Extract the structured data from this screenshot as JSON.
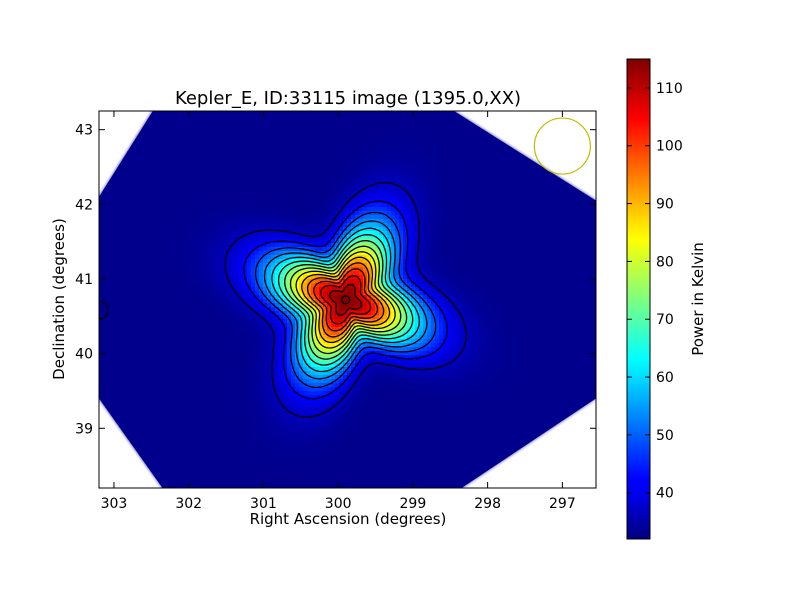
{
  "chart_data": {
    "type": "heatmap",
    "title": "Kepler_E, ID:33115 image (1395.0,XX)",
    "xlabel": "Right Ascension (degrees)",
    "ylabel": "Declination (degrees)",
    "xlim": [
      303.2,
      296.55
    ],
    "ylim": [
      38.2,
      43.25
    ],
    "x_ticks": [
      303,
      302,
      301,
      300,
      299,
      298,
      297
    ],
    "y_ticks": [
      39,
      40,
      41,
      42,
      43
    ],
    "grid": false,
    "colorbar": {
      "label": "Power in Kelvin",
      "range": [
        32,
        115
      ],
      "ticks": [
        40,
        50,
        60,
        70,
        80,
        90,
        100,
        110
      ],
      "colormap": "jet"
    },
    "peak": {
      "ra": 299.9,
      "dec": 40.72,
      "value": 115
    },
    "background_value": 33,
    "contour_count": 14,
    "contour_color": "#000000",
    "markers": [
      {
        "ra": 297.0,
        "dec": 42.78,
        "shape": "circle",
        "color": "#bfbf00"
      },
      {
        "ra": 303.2,
        "dec": 40.58,
        "shape": "circle",
        "color": "#000000"
      },
      {
        "ra": 299.9,
        "dec": 40.72,
        "shape": "circle",
        "color": "#000000"
      }
    ]
  }
}
